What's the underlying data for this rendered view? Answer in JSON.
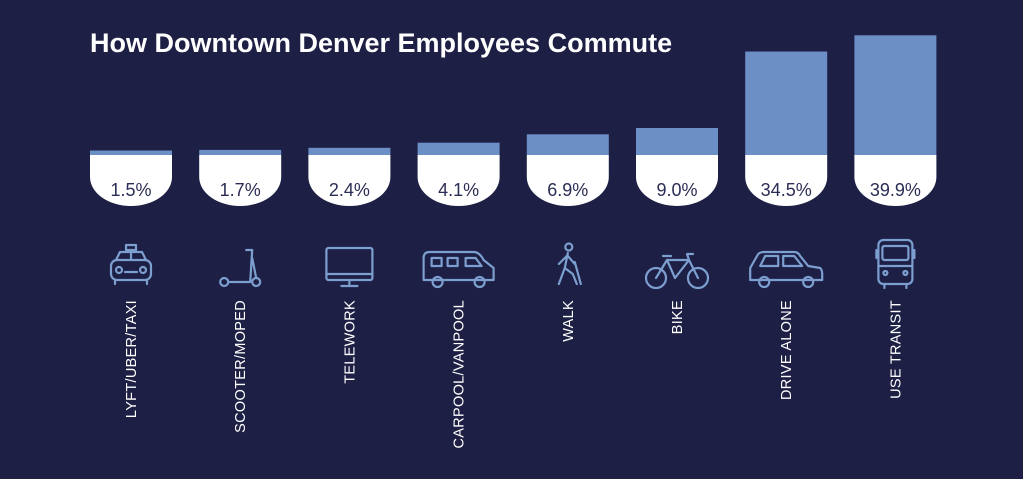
{
  "colors": {
    "background": "#1d1f44",
    "bar": "#6c8fc5",
    "badge": "#ffffff",
    "badge_text": "#2a2d55",
    "icon": "#7c9fd0",
    "text": "#ffffff"
  },
  "chart_data": {
    "type": "bar",
    "title": "How Downtown Denver Employees Commute",
    "categories": [
      "LYFT/UBER/TAXI",
      "SCOOTER/MOPED",
      "TELEWORK",
      "CARPOOL/VANPOOL",
      "WALK",
      "BIKE",
      "DRIVE ALONE",
      "USE TRANSIT"
    ],
    "values": [
      1.5,
      1.7,
      2.4,
      4.1,
      6.9,
      9.0,
      34.5,
      39.9
    ],
    "value_labels": [
      "1.5%",
      "1.7%",
      "2.4%",
      "4.1%",
      "6.9%",
      "9.0%",
      "34.5%",
      "39.9%"
    ],
    "icons": [
      "taxi-icon",
      "scooter-icon",
      "monitor-icon",
      "van-icon",
      "walking-person-icon",
      "bicycle-icon",
      "car-icon",
      "bus-icon"
    ],
    "unit": "%",
    "ylim": [
      0,
      40
    ],
    "grid": false,
    "legend": "none"
  }
}
